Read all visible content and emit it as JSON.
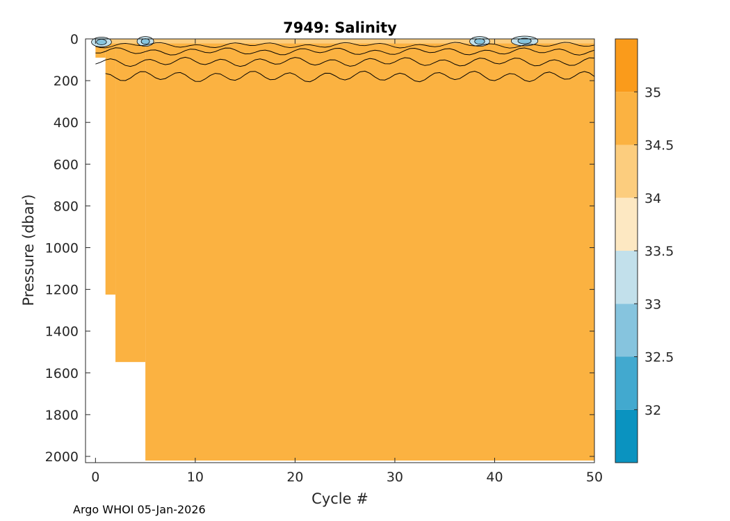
{
  "chart_data": {
    "type": "heatmap",
    "title": "7949:  Salinity",
    "xlabel": "Cycle #",
    "ylabel": "Pressure (dbar)",
    "xlim": [
      -1,
      50
    ],
    "ylim": [
      2030,
      0
    ],
    "y_reversed": true,
    "x_ticks": [
      0,
      10,
      20,
      30,
      40,
      50
    ],
    "y_ticks": [
      0,
      200,
      400,
      600,
      800,
      1000,
      1200,
      1400,
      1600,
      1800,
      2000
    ],
    "colorbar": {
      "range": [
        31.5,
        35.5
      ],
      "levels": [
        31.5,
        32,
        32.5,
        33,
        33.5,
        34,
        34.5,
        35,
        35.5
      ],
      "colors": [
        "#0a93c0",
        "#42a9cf",
        "#86c4de",
        "#c2e0eb",
        "#fde8c2",
        "#fccd7e",
        "#fbb241",
        "#fa9b1b"
      ],
      "tick_labels": [
        "32",
        "32.5",
        "33",
        "33.5",
        "34",
        "34.5",
        "35"
      ],
      "tick_values": [
        32,
        32.5,
        33,
        33.5,
        34,
        34.5,
        35
      ]
    },
    "profile_max_pressure": [
      {
        "cycle_from": 0,
        "cycle_to": 1,
        "max_pressure": 90
      },
      {
        "cycle_from": 1,
        "cycle_to": 2,
        "max_pressure": 1225
      },
      {
        "cycle_from": 2,
        "cycle_to": 5,
        "max_pressure": 1548
      },
      {
        "cycle_from": 5,
        "cycle_to": 50,
        "max_pressure": 2020
      }
    ],
    "dominant_salinity": 34.6,
    "grid": false,
    "legend": "colorbar-right"
  },
  "footer": "Argo WHOI 05-Jan-2026"
}
